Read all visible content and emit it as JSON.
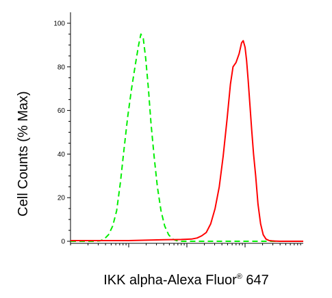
{
  "chart_data": {
    "type": "line",
    "title": "",
    "xlabel_main": "IKK alpha-Alexa Fluor",
    "xlabel_sup": "®",
    "xlabel_tail": " 647",
    "ylabel": "Cell Counts (% Max)",
    "x_scale": "log",
    "xlim": [
      1,
      10000
    ],
    "ylim": [
      0,
      100
    ],
    "yticks": [
      0,
      20,
      40,
      60,
      80,
      100
    ],
    "xtick_major": [
      10,
      100,
      1000
    ],
    "grid": false,
    "legend": "none",
    "series": [
      {
        "style": "dashed",
        "color": "#00ee00",
        "x": [
          1.0,
          1.6,
          2.5,
          3.2,
          3.8,
          4.5,
          5.3,
          6.2,
          7.2,
          8.3,
          9.6,
          11.2,
          13.0,
          14.8,
          16.2,
          17.8,
          19.6,
          21.8,
          24.2,
          27.3,
          31.1,
          35.9,
          41.6,
          48.5,
          57.0,
          66.0,
          80.0,
          100,
          150,
          300,
          1000,
          10000
        ],
        "y": [
          0,
          0,
          0,
          0.2,
          1,
          3,
          7,
          14,
          27,
          42,
          57,
          70,
          81,
          90,
          95,
          93,
          84,
          70,
          54,
          39,
          25,
          14,
          7,
          3,
          1,
          0.3,
          0,
          0,
          0,
          0,
          0,
          0
        ]
      },
      {
        "style": "solid",
        "color": "#ff0000",
        "x": [
          1.0,
          5,
          10,
          20,
          40,
          80,
          120,
          150,
          180,
          215,
          257,
          305,
          360,
          420,
          490,
          560,
          620,
          700,
          790,
          870,
          930,
          1000,
          1060,
          1130,
          1210,
          1300,
          1400,
          1520,
          1670,
          1850,
          2050,
          2290,
          2600,
          2900,
          3300,
          4000,
          6000,
          10000
        ],
        "y": [
          0.3,
          0.3,
          0.3,
          0.5,
          0.7,
          0.8,
          1,
          1.5,
          2.5,
          4,
          8,
          15,
          25,
          39,
          56,
          72,
          80,
          82,
          86,
          91,
          92,
          89,
          83,
          74,
          63,
          51,
          40,
          30,
          17,
          8,
          3,
          1,
          0.3,
          0.2,
          0.1,
          0,
          0,
          0
        ]
      }
    ]
  }
}
